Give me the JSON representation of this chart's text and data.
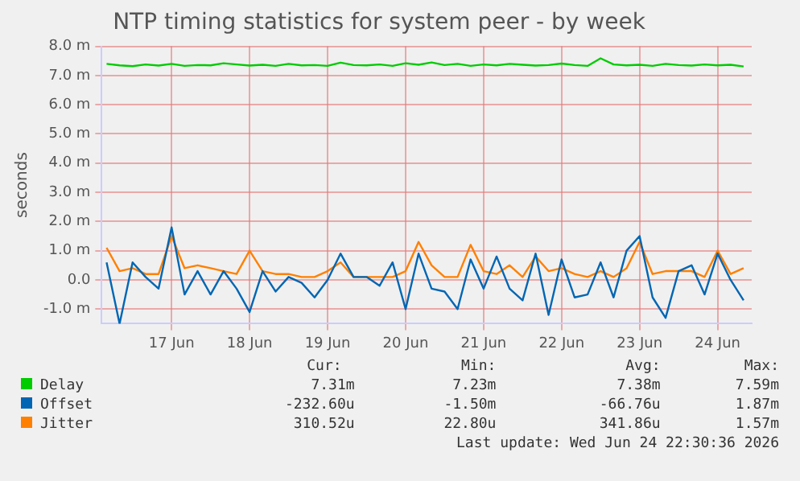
{
  "chart_data": {
    "type": "line",
    "title": "NTP timing statistics for system peer - by week",
    "ylabel": "seconds",
    "x": [
      "2026-06-16T16:00",
      "2026-06-16T20:00",
      "2026-06-17T00:00",
      "2026-06-17T04:00",
      "2026-06-17T08:00",
      "2026-06-17T12:00",
      "2026-06-17T16:00",
      "2026-06-17T20:00",
      "2026-06-18T00:00",
      "2026-06-18T04:00",
      "2026-06-18T08:00",
      "2026-06-18T12:00",
      "2026-06-18T16:00",
      "2026-06-18T20:00",
      "2026-06-19T00:00",
      "2026-06-19T04:00",
      "2026-06-19T08:00",
      "2026-06-19T12:00",
      "2026-06-19T16:00",
      "2026-06-19T20:00",
      "2026-06-20T00:00",
      "2026-06-20T04:00",
      "2026-06-20T08:00",
      "2026-06-20T12:00",
      "2026-06-20T16:00",
      "2026-06-20T20:00",
      "2026-06-21T00:00",
      "2026-06-21T04:00",
      "2026-06-21T08:00",
      "2026-06-21T12:00",
      "2026-06-21T16:00",
      "2026-06-21T20:00",
      "2026-06-22T00:00",
      "2026-06-22T04:00",
      "2026-06-22T08:00",
      "2026-06-22T12:00",
      "2026-06-22T16:00",
      "2026-06-22T20:00",
      "2026-06-23T00:00",
      "2026-06-23T04:00",
      "2026-06-23T08:00",
      "2026-06-23T12:00",
      "2026-06-23T16:00",
      "2026-06-23T20:00",
      "2026-06-24T00:00",
      "2026-06-24T04:00",
      "2026-06-24T08:00",
      "2026-06-24T12:00",
      "2026-06-24T16:00",
      "2026-06-24T20:00"
    ],
    "series": [
      {
        "name": "Delay",
        "color": "#00cc00",
        "values": [
          7.4,
          7.35,
          7.32,
          7.38,
          7.34,
          7.4,
          7.33,
          7.36,
          7.35,
          7.42,
          7.38,
          7.34,
          7.37,
          7.33,
          7.4,
          7.35,
          7.36,
          7.33,
          7.44,
          7.36,
          7.35,
          7.38,
          7.33,
          7.42,
          7.37,
          7.45,
          7.36,
          7.4,
          7.33,
          7.38,
          7.35,
          7.4,
          7.37,
          7.34,
          7.36,
          7.41,
          7.36,
          7.33,
          7.59,
          7.38,
          7.35,
          7.37,
          7.33,
          7.4,
          7.36,
          7.34,
          7.38,
          7.35,
          7.37,
          7.31
        ]
      },
      {
        "name": "Offset",
        "color": "#0066b3",
        "values": [
          0.6,
          -1.5,
          0.6,
          0.1,
          -0.3,
          1.8,
          -0.5,
          0.3,
          -0.5,
          0.3,
          -0.3,
          -1.1,
          0.3,
          -0.4,
          0.1,
          -0.1,
          -0.6,
          0,
          0.9,
          0.1,
          0.1,
          -0.2,
          0.6,
          -1,
          0.9,
          -0.3,
          -0.4,
          -1,
          0.7,
          -0.3,
          0.8,
          -0.3,
          -0.7,
          0.9,
          -1.2,
          0.7,
          -0.6,
          -0.5,
          0.6,
          -0.6,
          1,
          1.5,
          -0.6,
          -1.3,
          0.3,
          0.5,
          -0.5,
          0.9,
          0,
          -0.7
        ]
      },
      {
        "name": "Jitter",
        "color": "#ff8000",
        "values": [
          1.1,
          0.3,
          0.4,
          0.2,
          0.2,
          1.5,
          0.4,
          0.5,
          0.4,
          0.3,
          0.2,
          1,
          0.3,
          0.2,
          0.2,
          0.1,
          0.1,
          0.3,
          0.6,
          0.1,
          0.1,
          0.1,
          0.1,
          0.3,
          1.3,
          0.5,
          0.1,
          0.1,
          1.2,
          0.3,
          0.2,
          0.5,
          0.1,
          0.8,
          0.3,
          0.4,
          0.2,
          0.1,
          0.3,
          0.1,
          0.4,
          1.3,
          0.2,
          0.3,
          0.3,
          0.3,
          0.1,
          1,
          0.2,
          0.4
        ]
      }
    ],
    "xlim": [
      "2026-06-16T14:30",
      "2026-06-24T22:30"
    ],
    "xticks": [
      {
        "value": "2026-06-17T12:00",
        "label": "17 Jun"
      },
      {
        "value": "2026-06-18T12:00",
        "label": "18 Jun"
      },
      {
        "value": "2026-06-19T12:00",
        "label": "19 Jun"
      },
      {
        "value": "2026-06-20T12:00",
        "label": "20 Jun"
      },
      {
        "value": "2026-06-21T12:00",
        "label": "21 Jun"
      },
      {
        "value": "2026-06-22T12:00",
        "label": "22 Jun"
      },
      {
        "value": "2026-06-23T12:00",
        "label": "23 Jun"
      },
      {
        "value": "2026-06-24T12:00",
        "label": "24 Jun"
      }
    ],
    "ylim": [
      -1.5,
      8
    ],
    "yticks": [
      {
        "value": -1,
        "label": "-1.0 m"
      },
      {
        "value": 0,
        "label": "0.0"
      },
      {
        "value": 1,
        "label": "1.0 m"
      },
      {
        "value": 2,
        "label": "2.0 m"
      },
      {
        "value": 3,
        "label": "3.0 m"
      },
      {
        "value": 4,
        "label": "4.0 m"
      },
      {
        "value": 5,
        "label": "5.0 m"
      },
      {
        "value": 6,
        "label": "6.0 m"
      },
      {
        "value": 7,
        "label": "7.0 m"
      },
      {
        "value": 8,
        "label": "8.0 m"
      }
    ],
    "grid": true,
    "legend": "bottom",
    "marker": "none",
    "line_style": "solid",
    "annotations": [
      "Cur:",
      "Min:",
      "Avg:",
      "Max:",
      "7.31m",
      "7.23m",
      "7.38m",
      "7.59m",
      "-232.60u",
      "-1.50m",
      "-66.76u",
      "1.87m",
      "310.52u",
      "22.80u",
      "341.86u",
      "1.57m",
      "Last update: Wed Jun 24 22:30:36 2026"
    ]
  }
}
